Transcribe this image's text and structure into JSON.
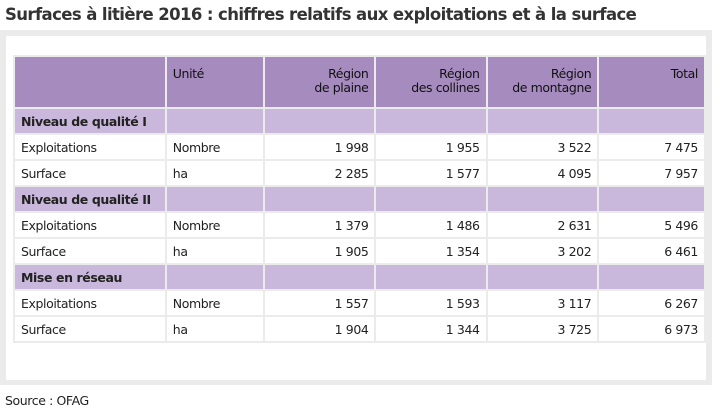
{
  "title": "Surfaces à litière 2016 : chiffres relatifs aux exploitations et à la surface",
  "headers": {
    "unit": "Unité",
    "plain": [
      "Région",
      "de plaine"
    ],
    "hills": [
      "Région",
      "des collines"
    ],
    "mountain": [
      "Région",
      "de montagne"
    ],
    "total": "Total"
  },
  "sections": [
    {
      "label": "Niveau de qualité I",
      "rows": [
        {
          "label": "Exploitations",
          "unit": "Nombre",
          "plain": "1 998",
          "hills": "1 955",
          "mountain": "3 522",
          "total": "7 475"
        },
        {
          "label": "Surface",
          "unit": "ha",
          "plain": "2 285",
          "hills": "1 577",
          "mountain": "4 095",
          "total": "7 957"
        }
      ]
    },
    {
      "label": "Niveau de qualité II",
      "rows": [
        {
          "label": "Exploitations",
          "unit": "Nombre",
          "plain": "1 379",
          "hills": "1 486",
          "mountain": "2 631",
          "total": "5 496"
        },
        {
          "label": "Surface",
          "unit": "ha",
          "plain": "1 905",
          "hills": "1 354",
          "mountain": "3 202",
          "total": "6 461"
        }
      ]
    },
    {
      "label": "Mise en réseau",
      "rows": [
        {
          "label": "Exploitations",
          "unit": "Nombre",
          "plain": "1 557",
          "hills": "1 593",
          "mountain": "3 117",
          "total": "6 267"
        },
        {
          "label": "Surface",
          "unit": "ha",
          "plain": "1 904",
          "hills": "1 344",
          "mountain": "3 725",
          "total": "6 973"
        }
      ]
    }
  ],
  "source": "Source : OFAG"
}
